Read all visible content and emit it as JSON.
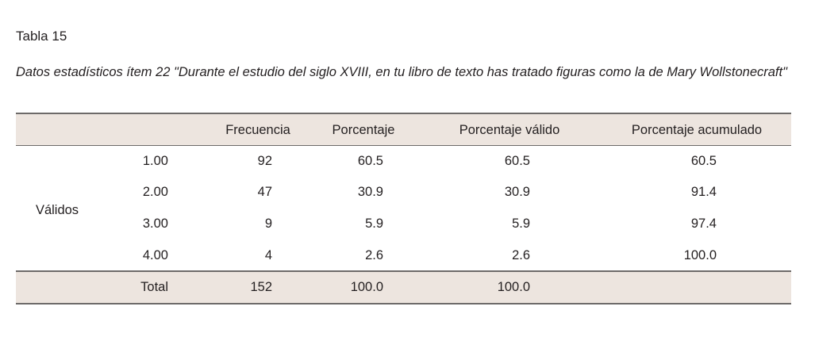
{
  "title": "Tabla 15",
  "caption": "Datos estadísticos ítem 22 \"Durante el estudio del siglo XVIII, en tu libro de texto has tratado figuras como la de Mary Wollstonecraft\"",
  "table": {
    "columns": [
      "Frecuencia",
      "Porcentaje",
      "Porcentaje válido",
      "Porcentaje acumulado"
    ],
    "group": "Válidos",
    "rows": [
      [
        "1.00",
        "92",
        "60.5",
        "60.5",
        "60.5"
      ],
      [
        "2.00",
        "47",
        "30.9",
        "30.9",
        "91.4"
      ],
      [
        "3.00",
        "9",
        "5.9",
        "5.9",
        "97.4"
      ],
      [
        "4.00",
        "4",
        "2.6",
        "2.6",
        "100.0"
      ]
    ],
    "total": [
      "Total",
      "152",
      "100.0",
      "100.0"
    ]
  }
}
